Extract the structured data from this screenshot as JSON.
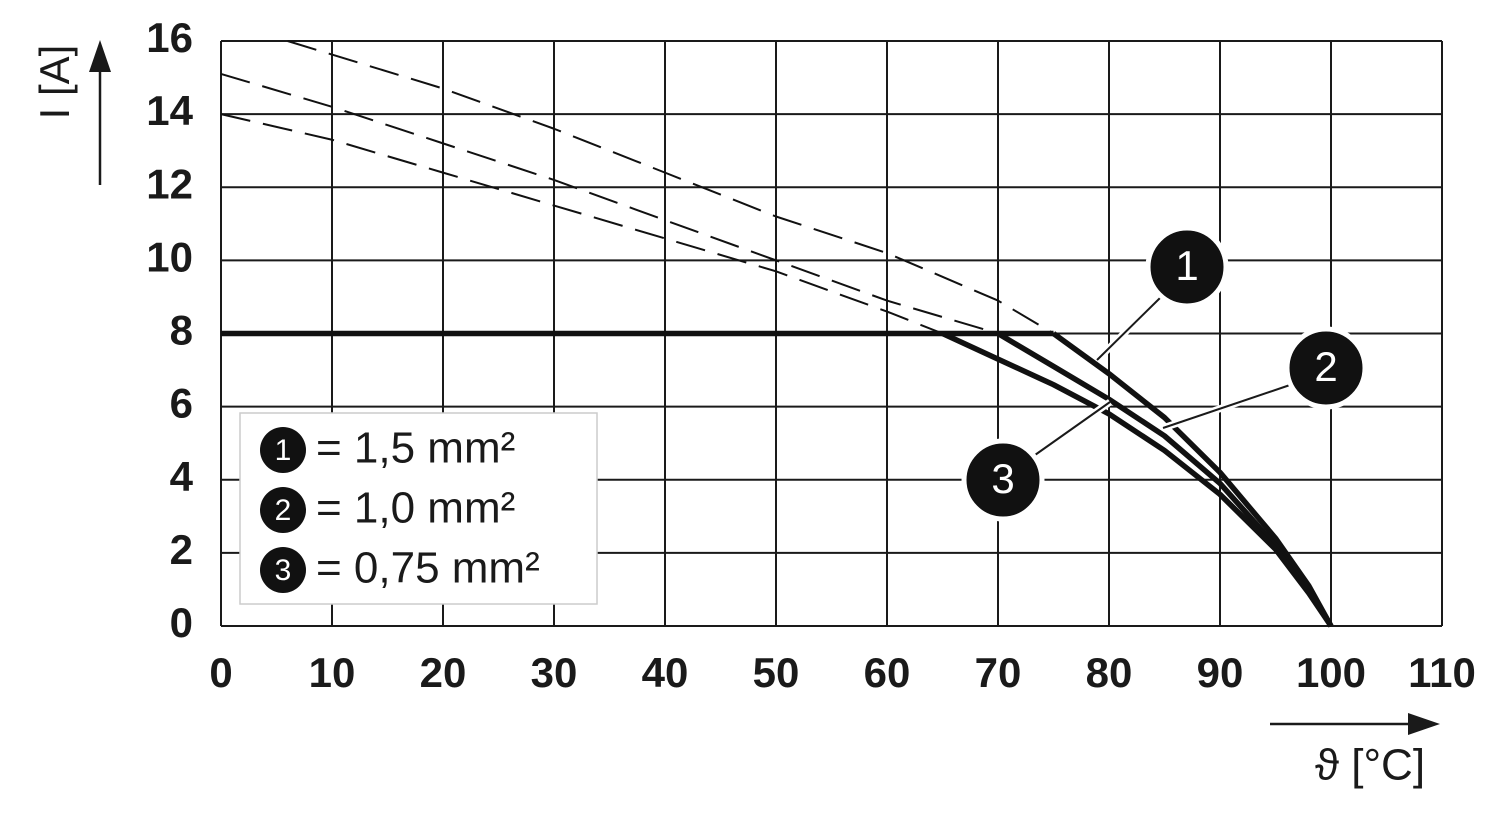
{
  "chart_data": {
    "type": "line",
    "x_label": "ϑ [°C]",
    "y_label": "I [A]",
    "xlim": [
      0,
      110
    ],
    "xticks": [
      0,
      10,
      20,
      30,
      40,
      50,
      60,
      70,
      80,
      90,
      100,
      110
    ],
    "ylim": [
      0,
      16
    ],
    "yticks": [
      0,
      2,
      4,
      6,
      8,
      10,
      12,
      14,
      16
    ],
    "grid": true,
    "legend": "lower left",
    "rated_limit": 8,
    "limit_line": {
      "x": [
        0,
        75
      ],
      "values": [
        8,
        8
      ]
    },
    "series": [
      {
        "marker": "1",
        "name": "= 1,5 mm²",
        "color": "#111111",
        "x": [
          6,
          20,
          30,
          40,
          50,
          60,
          70,
          75,
          80,
          85,
          90,
          95,
          98,
          100
        ],
        "values": [
          16,
          14.7,
          13.6,
          12.4,
          11.2,
          10.2,
          8.9,
          8,
          6.9,
          5.7,
          4.2,
          2.4,
          1.1,
          0
        ]
      },
      {
        "marker": "2",
        "name": "= 1,0 mm²",
        "color": "#111111",
        "x": [
          0,
          10,
          20,
          30,
          40,
          50,
          60,
          70,
          75,
          80,
          85,
          90,
          95,
          98,
          100
        ],
        "values": [
          15.1,
          14.2,
          13.2,
          12.2,
          11.1,
          10.0,
          8.9,
          8,
          7.1,
          6.2,
          5.2,
          3.9,
          2.2,
          1.0,
          0
        ]
      },
      {
        "marker": "3",
        "name": "= 0,75 mm²",
        "color": "#111111",
        "x": [
          0,
          10,
          20,
          30,
          40,
          50,
          60,
          65,
          70,
          75,
          80,
          85,
          90,
          95,
          98,
          100
        ],
        "values": [
          14,
          13.3,
          12.4,
          11.5,
          10.6,
          9.7,
          8.6,
          8,
          7.3,
          6.6,
          5.8,
          4.8,
          3.6,
          2.1,
          0.9,
          0
        ]
      }
    ]
  }
}
